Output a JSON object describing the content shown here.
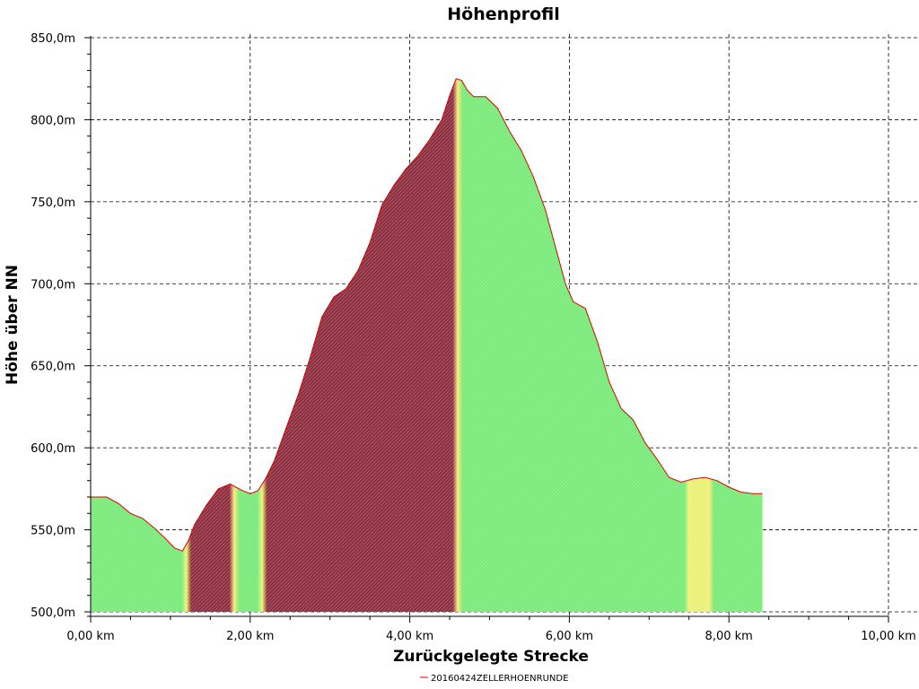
{
  "chart_data": {
    "type": "area",
    "title": "Höhenprofil",
    "xlabel": "Zurückgelegte Strecke",
    "ylabel": "Höhe über NN",
    "xlim": [
      0,
      10
    ],
    "ylim": [
      500,
      850
    ],
    "x_ticks": [
      0,
      2,
      4,
      6,
      8,
      10
    ],
    "x_tick_labels": [
      "0,00 km",
      "2,00 km",
      "4,00 km",
      "6,00 km",
      "8,00 km",
      "10,00 km"
    ],
    "y_ticks": [
      500,
      550,
      600,
      650,
      700,
      750,
      800,
      850
    ],
    "y_tick_labels": [
      "500,0m",
      "550,0m",
      "600,0m",
      "650,0m",
      "700,0m",
      "750,0m",
      "800,0m",
      "850,0m"
    ],
    "grid": true,
    "legend_position": "bottom-center",
    "series": [
      {
        "name": "20160424ZELLERHOENRUNDE",
        "line_color": "#e00000",
        "x": [
          0.0,
          0.2,
          0.35,
          0.5,
          0.65,
          0.8,
          0.95,
          1.05,
          1.15,
          1.22,
          1.3,
          1.45,
          1.6,
          1.75,
          1.82,
          1.9,
          2.0,
          2.1,
          2.2,
          2.3,
          2.45,
          2.6,
          2.75,
          2.9,
          3.05,
          3.2,
          3.35,
          3.5,
          3.65,
          3.8,
          3.95,
          4.1,
          4.25,
          4.4,
          4.5,
          4.58,
          4.65,
          4.72,
          4.8,
          4.95,
          5.1,
          5.25,
          5.4,
          5.55,
          5.7,
          5.85,
          5.95,
          6.05,
          6.2,
          6.35,
          6.5,
          6.65,
          6.8,
          6.95,
          7.1,
          7.25,
          7.4,
          7.55,
          7.7,
          7.85,
          8.0,
          8.15,
          8.3,
          8.42
        ],
        "y": [
          570,
          570,
          566,
          560,
          557,
          551,
          544,
          539,
          537,
          543,
          553,
          565,
          575,
          578,
          576,
          574,
          572,
          574,
          582,
          592,
          612,
          632,
          655,
          680,
          692,
          697,
          708,
          725,
          748,
          760,
          770,
          778,
          788,
          800,
          815,
          825,
          824,
          818,
          814,
          814,
          807,
          793,
          781,
          765,
          745,
          718,
          700,
          689,
          685,
          665,
          640,
          624,
          617,
          603,
          593,
          582,
          579,
          581,
          582,
          580,
          576,
          573,
          572,
          572
        ]
      }
    ],
    "fill_bands": [
      {
        "from": 0.0,
        "to": 1.2,
        "color": "#7be87b"
      },
      {
        "from": 1.2,
        "to": 1.8,
        "color": "#8a3040"
      },
      {
        "from": 1.8,
        "to": 2.15,
        "color": "#7be87b"
      },
      {
        "from": 2.15,
        "to": 4.6,
        "color": "#8a3040"
      },
      {
        "from": 4.6,
        "to": 7.5,
        "color": "#7be87b"
      },
      {
        "from": 7.5,
        "to": 7.75,
        "color": "#e8f07a"
      },
      {
        "from": 7.75,
        "to": 8.42,
        "color": "#7be87b"
      }
    ]
  }
}
